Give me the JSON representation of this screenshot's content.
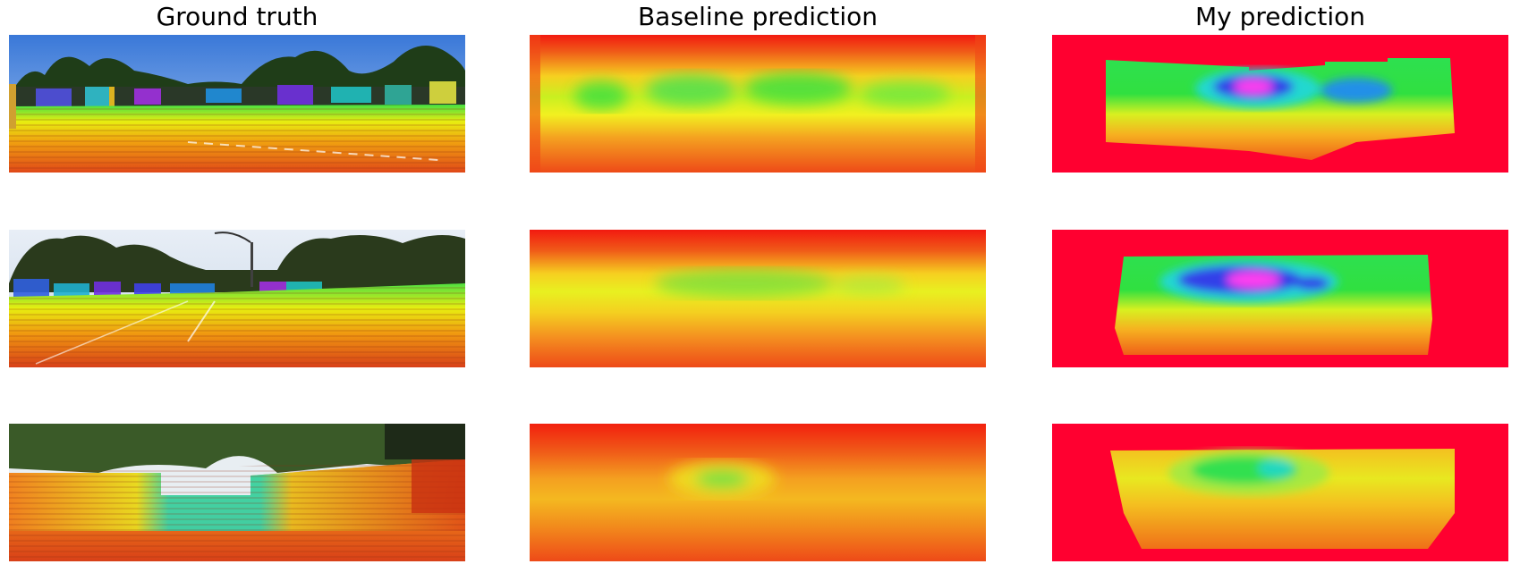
{
  "figure": {
    "columns": [
      {
        "title": "Ground truth"
      },
      {
        "title": "Baseline prediction"
      },
      {
        "title": "My prediction"
      }
    ],
    "rows": [
      {
        "ground_truth": {
          "scene": "street with trees, parked cars and lidar depth overlay"
        },
        "baseline": {
          "scene": "blurry depth heatmap, green horizontal band"
        },
        "mine": {
          "scene": "sharp depth heatmap with blue/magenta far region on red background"
        }
      },
      {
        "ground_truth": {
          "scene": "road with street lamp, trees and lidar depth overlay"
        },
        "baseline": {
          "scene": "blurry depth heatmap, yellow-green band"
        },
        "mine": {
          "scene": "depth heatmap with blue/magenta center on red background"
        }
      },
      {
        "ground_truth": {
          "scene": "road between hedges with lidar depth overlay"
        },
        "baseline": {
          "scene": "blurry depth heatmap, small green spot"
        },
        "mine": {
          "scene": "depth heatmap with green/cyan center on red background"
        }
      }
    ],
    "colors": {
      "near": "#e8401a",
      "mid_yellow": "#f6f000",
      "mid_green": "#2de04a",
      "far_blue": "#3038e8",
      "farthest_magenta": "#ff3cf0",
      "background_red": "#ff0030"
    }
  }
}
